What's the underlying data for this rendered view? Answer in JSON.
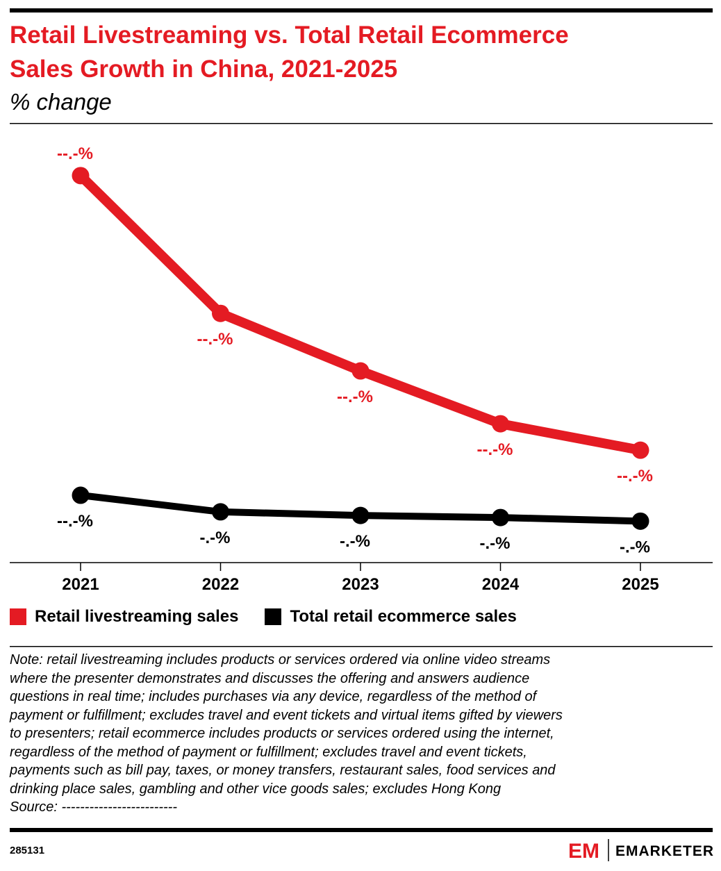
{
  "chart_data": {
    "type": "line",
    "title": [
      "Retail Livestreaming vs. Total Retail Ecommerce",
      "Sales Growth in China, 2021-2025"
    ],
    "subtitle": "% change",
    "categories": [
      "2021",
      "2022",
      "2023",
      "2024",
      "2025"
    ],
    "series": [
      {
        "name": "Retail livestreaming sales",
        "color": "#e41b23",
        "values": [
          74.7,
          48.1,
          37.0,
          26.8,
          21.7
        ],
        "value_labels": [
          "--.-%",
          "--.-%",
          "--.-%",
          "--.-%",
          "--.-%"
        ]
      },
      {
        "name": "Total retail ecommerce sales",
        "color": "#000000",
        "values": [
          13.0,
          9.8,
          9.1,
          8.7,
          8.0
        ],
        "value_labels": [
          "--.-%",
          "-.-%",
          "-.-%",
          "-.-%",
          "-.-%"
        ]
      }
    ],
    "ylim": [
      0,
      85
    ],
    "note": [
      "Note: retail livestreaming includes products or services ordered via online video streams",
      "where the presenter demonstrates and discusses the offering and answers audience",
      "questions in real time; includes purchases via any device, regardless of the method of",
      "payment or fulfillment; excludes travel and event tickets and virtual items gifted by viewers",
      "to presenters; retail ecommerce includes products or services ordered using the internet,",
      "regardless of the method of payment or fulfillment; excludes travel and event tickets,",
      "payments such as bill pay, taxes, or money transfers, restaurant sales, food services and",
      "drinking place sales, gambling and other vice goods sales; excludes Hong Kong"
    ],
    "source": "Source: -------------------------",
    "id": "285131",
    "brand": "EMARKETER"
  }
}
